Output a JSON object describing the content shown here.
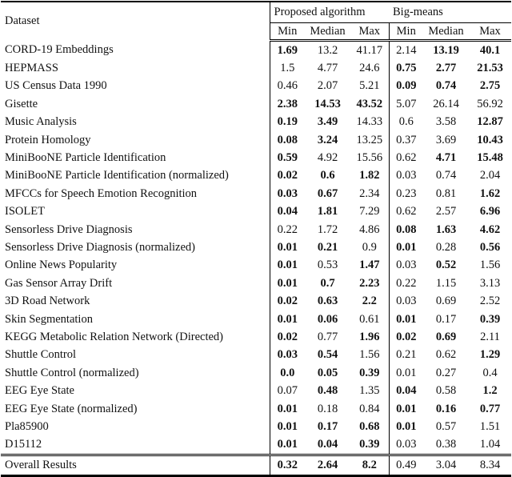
{
  "page": {
    "background": "#ffffff",
    "text_color": "#111111",
    "rule_color": "#000000"
  },
  "table": {
    "header": {
      "dataset_label": "Dataset",
      "group1_label": "Proposed algorithm",
      "group2_label": "Big-means",
      "subheaders": [
        "Min",
        "Median",
        "Max"
      ]
    },
    "rows": [
      {
        "dataset": "CORD-19 Embeddings",
        "proposed": [
          "1.69",
          "13.2",
          "41.17"
        ],
        "proposed_bold": [
          1,
          0,
          0
        ],
        "bigmeans": [
          "2.14",
          "13.19",
          "40.1"
        ],
        "bigmeans_bold": [
          0,
          1,
          1
        ]
      },
      {
        "dataset": "HEPMASS",
        "proposed": [
          "1.5",
          "4.77",
          "24.6"
        ],
        "proposed_bold": [
          0,
          0,
          0
        ],
        "bigmeans": [
          "0.75",
          "2.77",
          "21.53"
        ],
        "bigmeans_bold": [
          1,
          1,
          1
        ]
      },
      {
        "dataset": "US Census Data 1990",
        "proposed": [
          "0.46",
          "2.07",
          "5.21"
        ],
        "proposed_bold": [
          0,
          0,
          0
        ],
        "bigmeans": [
          "0.09",
          "0.74",
          "2.75"
        ],
        "bigmeans_bold": [
          1,
          1,
          1
        ]
      },
      {
        "dataset": "Gisette",
        "proposed": [
          "2.38",
          "14.53",
          "43.52"
        ],
        "proposed_bold": [
          1,
          1,
          1
        ],
        "bigmeans": [
          "5.07",
          "26.14",
          "56.92"
        ],
        "bigmeans_bold": [
          0,
          0,
          0
        ]
      },
      {
        "dataset": "Music Analysis",
        "proposed": [
          "0.19",
          "3.49",
          "14.33"
        ],
        "proposed_bold": [
          1,
          1,
          0
        ],
        "bigmeans": [
          "0.6",
          "3.58",
          "12.87"
        ],
        "bigmeans_bold": [
          0,
          0,
          1
        ]
      },
      {
        "dataset": "Protein Homology",
        "proposed": [
          "0.08",
          "3.24",
          "13.25"
        ],
        "proposed_bold": [
          1,
          1,
          0
        ],
        "bigmeans": [
          "0.37",
          "3.69",
          "10.43"
        ],
        "bigmeans_bold": [
          0,
          0,
          1
        ]
      },
      {
        "dataset": "MiniBooNE Particle Identification",
        "proposed": [
          "0.59",
          "4.92",
          "15.56"
        ],
        "proposed_bold": [
          1,
          0,
          0
        ],
        "bigmeans": [
          "0.62",
          "4.71",
          "15.48"
        ],
        "bigmeans_bold": [
          0,
          1,
          1
        ]
      },
      {
        "dataset": "MiniBooNE Particle Identification (normalized)",
        "proposed": [
          "0.02",
          "0.6",
          "1.82"
        ],
        "proposed_bold": [
          1,
          1,
          1
        ],
        "bigmeans": [
          "0.03",
          "0.74",
          "2.04"
        ],
        "bigmeans_bold": [
          0,
          0,
          0
        ]
      },
      {
        "dataset": "MFCCs for Speech Emotion Recognition",
        "proposed": [
          "0.03",
          "0.67",
          "2.34"
        ],
        "proposed_bold": [
          1,
          1,
          0
        ],
        "bigmeans": [
          "0.23",
          "0.81",
          "1.62"
        ],
        "bigmeans_bold": [
          0,
          0,
          1
        ]
      },
      {
        "dataset": "ISOLET",
        "proposed": [
          "0.04",
          "1.81",
          "7.29"
        ],
        "proposed_bold": [
          1,
          1,
          0
        ],
        "bigmeans": [
          "0.62",
          "2.57",
          "6.96"
        ],
        "bigmeans_bold": [
          0,
          0,
          1
        ]
      },
      {
        "dataset": "Sensorless Drive Diagnosis",
        "proposed": [
          "0.22",
          "1.72",
          "4.86"
        ],
        "proposed_bold": [
          0,
          0,
          0
        ],
        "bigmeans": [
          "0.08",
          "1.63",
          "4.62"
        ],
        "bigmeans_bold": [
          1,
          1,
          1
        ]
      },
      {
        "dataset": "Sensorless Drive Diagnosis (normalized)",
        "proposed": [
          "0.01",
          "0.21",
          "0.9"
        ],
        "proposed_bold": [
          1,
          1,
          0
        ],
        "bigmeans": [
          "0.01",
          "0.28",
          "0.56"
        ],
        "bigmeans_bold": [
          1,
          0,
          1
        ]
      },
      {
        "dataset": "Online News Popularity",
        "proposed": [
          "0.01",
          "0.53",
          "1.47"
        ],
        "proposed_bold": [
          1,
          0,
          1
        ],
        "bigmeans": [
          "0.03",
          "0.52",
          "1.56"
        ],
        "bigmeans_bold": [
          0,
          1,
          0
        ]
      },
      {
        "dataset": "Gas Sensor Array Drift",
        "proposed": [
          "0.01",
          "0.7",
          "2.23"
        ],
        "proposed_bold": [
          1,
          1,
          1
        ],
        "bigmeans": [
          "0.22",
          "1.15",
          "3.13"
        ],
        "bigmeans_bold": [
          0,
          0,
          0
        ]
      },
      {
        "dataset": "3D Road Network",
        "proposed": [
          "0.02",
          "0.63",
          "2.2"
        ],
        "proposed_bold": [
          1,
          1,
          1
        ],
        "bigmeans": [
          "0.03",
          "0.69",
          "2.52"
        ],
        "bigmeans_bold": [
          0,
          0,
          0
        ]
      },
      {
        "dataset": "Skin Segmentation",
        "proposed": [
          "0.01",
          "0.06",
          "0.61"
        ],
        "proposed_bold": [
          1,
          1,
          0
        ],
        "bigmeans": [
          "0.01",
          "0.17",
          "0.39"
        ],
        "bigmeans_bold": [
          1,
          0,
          1
        ]
      },
      {
        "dataset": "KEGG Metabolic Relation Network (Directed)",
        "proposed": [
          "0.02",
          "0.77",
          "1.96"
        ],
        "proposed_bold": [
          1,
          0,
          1
        ],
        "bigmeans": [
          "0.02",
          "0.69",
          "2.11"
        ],
        "bigmeans_bold": [
          1,
          1,
          0
        ]
      },
      {
        "dataset": "Shuttle Control",
        "proposed": [
          "0.03",
          "0.54",
          "1.56"
        ],
        "proposed_bold": [
          1,
          1,
          0
        ],
        "bigmeans": [
          "0.21",
          "0.62",
          "1.29"
        ],
        "bigmeans_bold": [
          0,
          0,
          1
        ]
      },
      {
        "dataset": "Shuttle Control (normalized)",
        "proposed": [
          "0.0",
          "0.05",
          "0.39"
        ],
        "proposed_bold": [
          1,
          1,
          1
        ],
        "bigmeans": [
          "0.01",
          "0.27",
          "0.4"
        ],
        "bigmeans_bold": [
          0,
          0,
          0
        ]
      },
      {
        "dataset": "EEG Eye State",
        "proposed": [
          "0.07",
          "0.48",
          "1.35"
        ],
        "proposed_bold": [
          0,
          1,
          0
        ],
        "bigmeans": [
          "0.04",
          "0.58",
          "1.2"
        ],
        "bigmeans_bold": [
          1,
          0,
          1
        ]
      },
      {
        "dataset": "EEG Eye State (normalized)",
        "proposed": [
          "0.01",
          "0.18",
          "0.84"
        ],
        "proposed_bold": [
          1,
          0,
          0
        ],
        "bigmeans": [
          "0.01",
          "0.16",
          "0.77"
        ],
        "bigmeans_bold": [
          1,
          1,
          1
        ]
      },
      {
        "dataset": "Pla85900",
        "proposed": [
          "0.01",
          "0.17",
          "0.68"
        ],
        "proposed_bold": [
          1,
          1,
          1
        ],
        "bigmeans": [
          "0.01",
          "0.57",
          "1.51"
        ],
        "bigmeans_bold": [
          1,
          0,
          0
        ]
      },
      {
        "dataset": "D15112",
        "proposed": [
          "0.01",
          "0.04",
          "0.39"
        ],
        "proposed_bold": [
          1,
          1,
          1
        ],
        "bigmeans": [
          "0.03",
          "0.38",
          "1.04"
        ],
        "bigmeans_bold": [
          0,
          0,
          0
        ]
      }
    ],
    "footer": {
      "label": "Overall Results",
      "proposed": [
        "0.32",
        "2.64",
        "8.2"
      ],
      "proposed_bold": [
        1,
        1,
        1
      ],
      "bigmeans": [
        "0.49",
        "3.04",
        "8.34"
      ],
      "bigmeans_bold": [
        0,
        0,
        0
      ]
    }
  }
}
